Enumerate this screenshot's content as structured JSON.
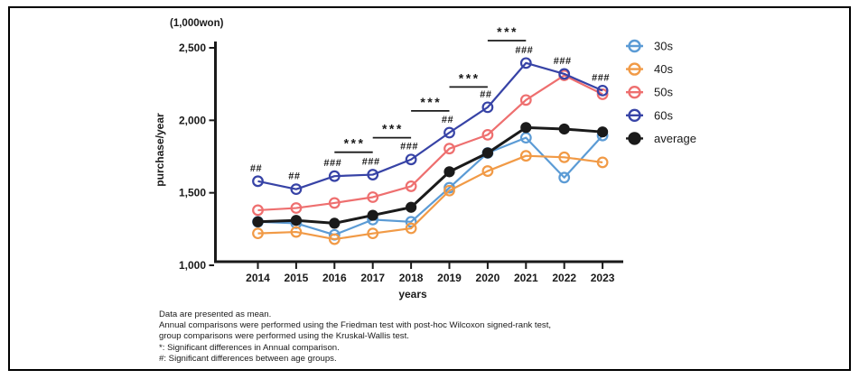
{
  "chart_data": {
    "type": "line",
    "title": "",
    "xlabel": "years",
    "ylabel": "purchase/year",
    "y_unit": "(1,000won)",
    "x": [
      2014,
      2015,
      2016,
      2017,
      2018,
      2019,
      2020,
      2021,
      2022,
      2023
    ],
    "ylim": [
      1000,
      2600
    ],
    "yticks": [
      1000,
      1500,
      2000,
      2500
    ],
    "ytick_labels": [
      "1,000",
      "1,500",
      "2,000",
      "2,500"
    ],
    "grid": false,
    "legend_position": "right",
    "series": [
      {
        "name": "30s",
        "color": "#5B9BD5",
        "marker": "open-circle",
        "values": [
          1300,
          1290,
          1210,
          1315,
          1300,
          1535,
          1775,
          1880,
          1605,
          1895
        ]
      },
      {
        "name": "40s",
        "color": "#F19A46",
        "marker": "open-circle",
        "values": [
          1220,
          1230,
          1180,
          1220,
          1255,
          1515,
          1650,
          1755,
          1745,
          1710
        ]
      },
      {
        "name": "50s",
        "color": "#EE6F6F",
        "marker": "open-circle",
        "values": [
          1380,
          1395,
          1430,
          1470,
          1545,
          1805,
          1900,
          2140,
          2310,
          2180
        ]
      },
      {
        "name": "60s",
        "color": "#3743A6",
        "marker": "open-circle",
        "values": [
          1580,
          1525,
          1615,
          1625,
          1730,
          1915,
          2090,
          2395,
          2320,
          2205
        ]
      },
      {
        "name": "average",
        "color": "#1A1A1A",
        "marker": "filled-circle",
        "values": [
          1300,
          1310,
          1290,
          1345,
          1400,
          1645,
          1775,
          1950,
          1940,
          1920
        ]
      }
    ],
    "annotations": {
      "hash_labels": [
        {
          "year": 2014,
          "text": "##"
        },
        {
          "year": 2015,
          "text": "##"
        },
        {
          "year": 2016,
          "text": "###"
        },
        {
          "year": 2017,
          "text": "###"
        },
        {
          "year": 2018,
          "text": "###"
        },
        {
          "year": 2019,
          "text": "##"
        },
        {
          "year": 2020,
          "text": "##"
        },
        {
          "year": 2021,
          "text": "###"
        },
        {
          "year": 2022,
          "text": "###"
        },
        {
          "year": 2023,
          "text": "###"
        }
      ],
      "star_brackets": [
        {
          "from": 2016,
          "to": 2017,
          "text": "***",
          "line_value": 1780
        },
        {
          "from": 2017,
          "to": 2018,
          "text": "***",
          "line_value": 1880
        },
        {
          "from": 2018,
          "to": 2019,
          "text": "***",
          "line_value": 2065
        },
        {
          "from": 2019,
          "to": 2020,
          "text": "***",
          "line_value": 2230
        },
        {
          "from": 2020,
          "to": 2021,
          "text": "***",
          "line_value": 2550
        }
      ]
    }
  },
  "footnotes": [
    "Data are presented as mean.",
    "Annual comparisons were performed using the Friedman test with post-hoc Wilcoxon signed-rank test,",
    "group comparisons were performed using the Kruskal-Wallis test.",
    "*: Significant differences in Annual comparison.",
    "#: Significant differences between age groups."
  ]
}
